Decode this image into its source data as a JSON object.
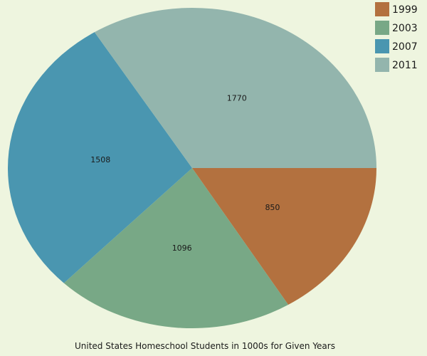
{
  "chart_data": {
    "type": "pie",
    "title": "United States Homeschool Students in 1000s for Given Years",
    "categories": [
      "1999",
      "2003",
      "2007",
      "2011"
    ],
    "values": [
      850,
      1096,
      1508,
      1770
    ],
    "colors": [
      "#b3713f",
      "#78a886",
      "#4a96b0",
      "#93b5ad"
    ],
    "legend_placement": "top-right"
  }
}
